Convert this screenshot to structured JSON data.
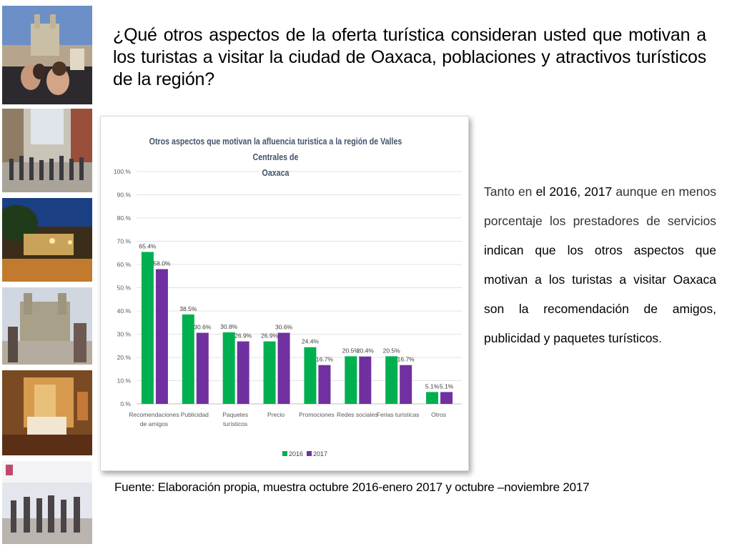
{
  "title": "¿Qué otros aspectos de la oferta turística consideran usted que motivan a los turistas a visitar la ciudad de Oaxaca, poblaciones y atractivos turísticos de la región?",
  "side_text": {
    "p1": "Tanto en ",
    "p2": "el 2016, 2017",
    "p3": " aunque en menos porcentaje los prestadores de servicios ",
    "p4": "indican que los otros aspectos que motivan a los turistas a visitar Oaxaca son la recomendación de amigos, publicidad y paquetes turísticos",
    "p5": "."
  },
  "source": "Fuente: Elaboración propia, muestra octubre 2016-enero 2017 y octubre –noviembre 2017",
  "photos": [
    "cathedral-tourists-photo",
    "street-crowd-photo",
    "night-courtyard-photo",
    "church-plaza-photo",
    "hotel-room-photo",
    "market-crowd-photo"
  ],
  "chart_data": {
    "type": "bar",
    "title_line1": "Otros aspectos que motivan la afluencia turistica a la región de Valles Centrales de",
    "title_line2": "Oaxaca",
    "categories": [
      [
        "Recomendaciones",
        "de amigos"
      ],
      [
        "Publicidad"
      ],
      [
        "Paquetes",
        "turísticos"
      ],
      [
        "Precio"
      ],
      [
        "Promociones"
      ],
      [
        "Redes sociales"
      ],
      [
        "Ferias turisticas"
      ],
      [
        "Otros"
      ]
    ],
    "series": [
      {
        "name": "2016",
        "color": "#00b050",
        "values": [
          65.4,
          38.5,
          30.8,
          26.9,
          24.4,
          20.5,
          20.5,
          5.1
        ]
      },
      {
        "name": "2017",
        "color": "#7030a0",
        "values": [
          58.0,
          30.6,
          26.9,
          30.6,
          16.7,
          20.4,
          16.7,
          5.1
        ]
      }
    ],
    "ylim": [
      0,
      100
    ],
    "yticks": [
      "0.%",
      "10.%",
      "20.%",
      "30.%",
      "40.%",
      "50.%",
      "60.%",
      "70.%",
      "80.%",
      "90.%",
      "100.%"
    ],
    "data_labels": [
      [
        "65.4%",
        "38.5%",
        "30.8%",
        "26.9%",
        "24.4%",
        "20.5%",
        "20.5%",
        "5.1%"
      ],
      [
        "58.0%",
        "30.6%",
        "26.9%",
        "30.6%",
        "16.7%",
        "20.4%",
        "16.7%",
        "5.1%"
      ]
    ],
    "grid": true,
    "legend_position": "bottom"
  }
}
